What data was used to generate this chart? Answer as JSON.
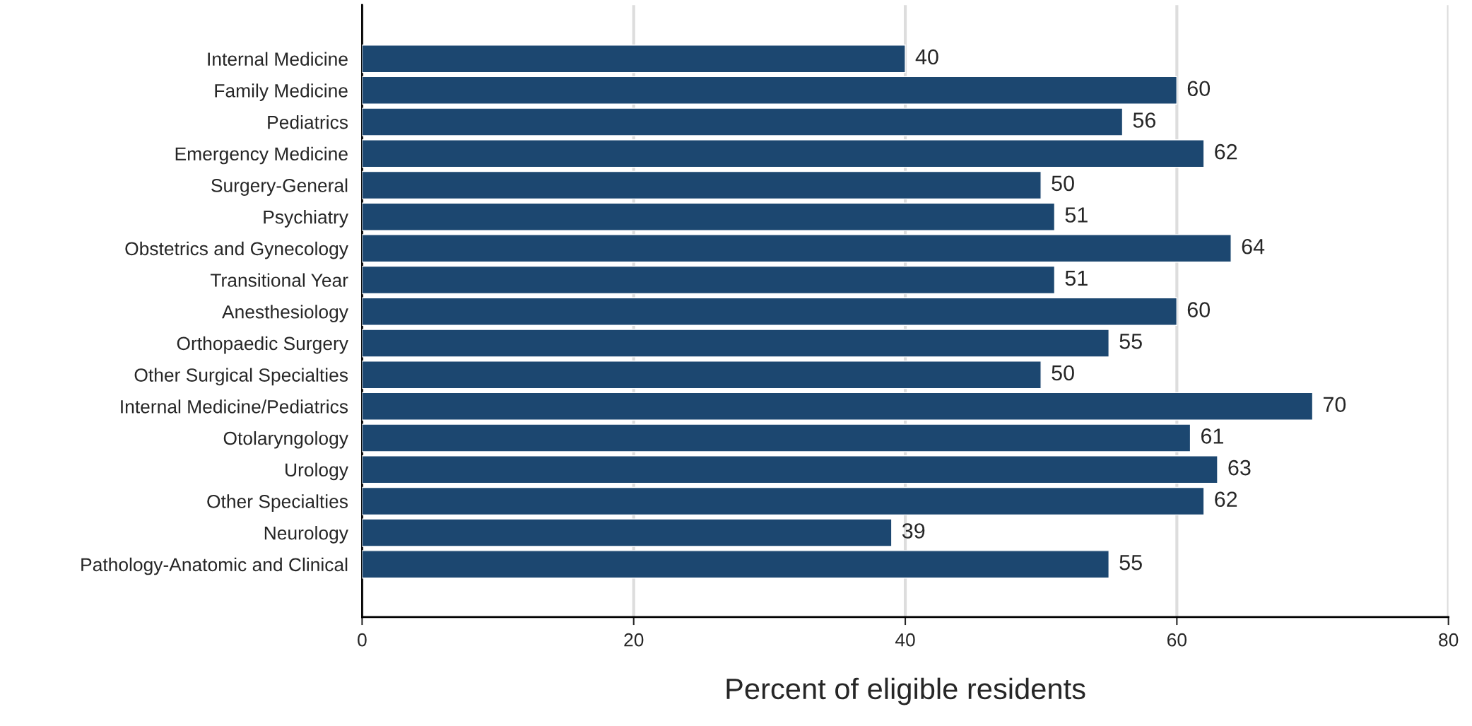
{
  "chart_data": {
    "type": "bar",
    "orientation": "horizontal",
    "xlabel": "Percent of eligible residents",
    "categories": [
      "Internal Medicine",
      "Family Medicine",
      "Pediatrics",
      "Emergency Medicine",
      "Surgery-General",
      "Psychiatry",
      "Obstetrics and Gynecology",
      "Transitional Year",
      "Anesthesiology",
      "Orthopaedic Surgery",
      "Other Surgical Specialties",
      "Internal Medicine/Pediatrics",
      "Otolaryngology",
      "Urology",
      "Other Specialties",
      "Neurology",
      "Pathology-Anatomic and Clinical"
    ],
    "values": [
      40,
      60,
      56,
      62,
      50,
      51,
      64,
      51,
      60,
      55,
      50,
      70,
      61,
      63,
      62,
      39,
      55
    ],
    "color": "#1c4770",
    "data_labels": true,
    "xlim": [
      0,
      80
    ],
    "xticks": [
      0,
      20,
      40,
      60,
      80
    ],
    "grid": "x",
    "legend": false
  }
}
